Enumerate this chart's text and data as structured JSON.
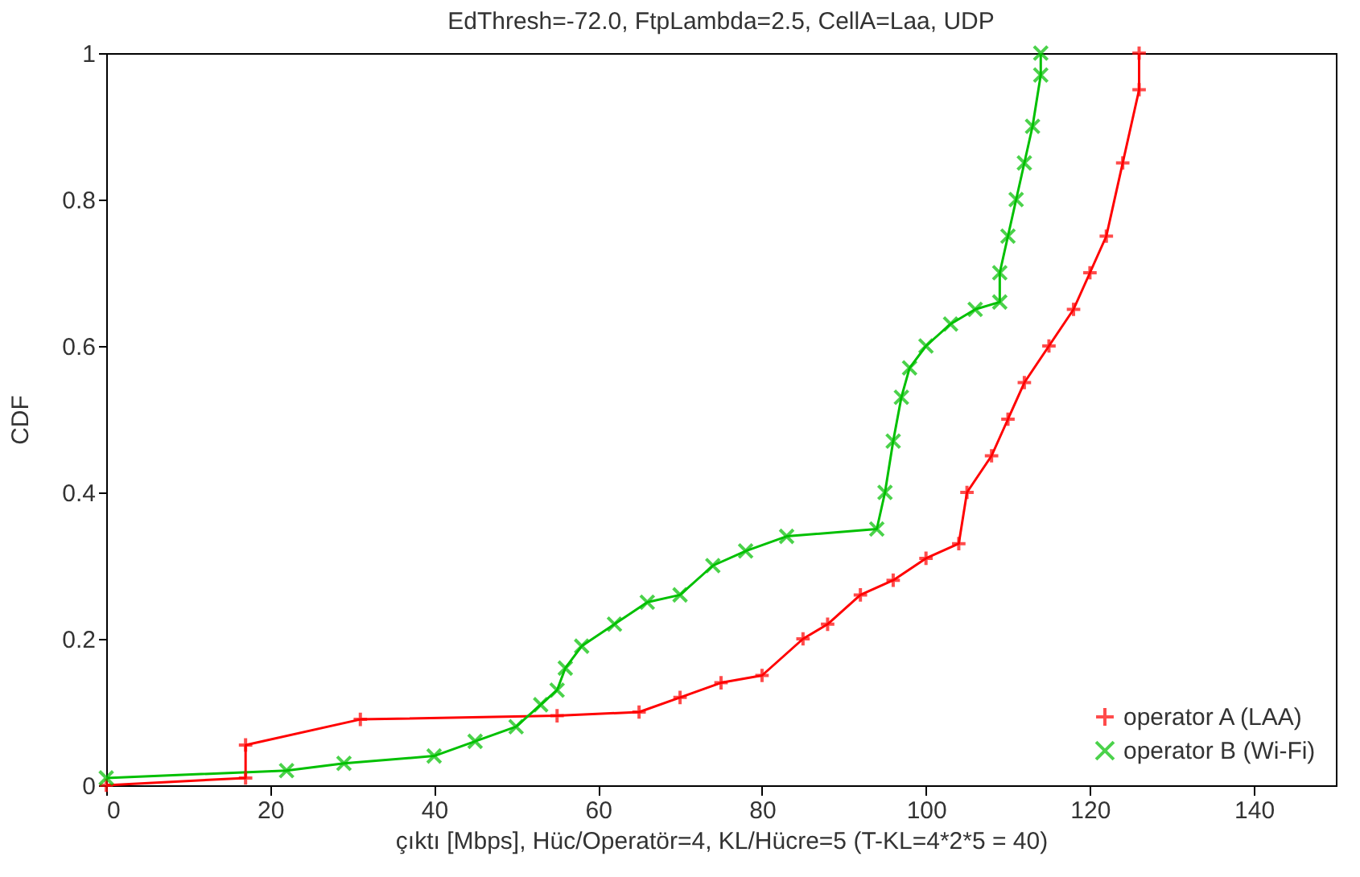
{
  "chart_data": {
    "type": "line",
    "title": "EdThresh=-72.0, FtpLambda=2.5, CellA=Laa, UDP",
    "xlabel": "çıktı [Mbps], Hüc/Operatör=4, KL/Hücre=5 (T-KL=4*2*5 = 40)",
    "ylabel": "CDF",
    "xlim": [
      0,
      150
    ],
    "xticks": [
      0,
      20,
      40,
      60,
      80,
      100,
      120,
      140
    ],
    "ylim": [
      0,
      1
    ],
    "yticks": [
      0,
      0.2,
      0.4,
      0.6,
      0.8,
      1
    ],
    "grid": false,
    "legend": "bottom right",
    "series": [
      {
        "name": "operator A (LAA)",
        "color": "#ff0000",
        "marker": "cross",
        "x": [
          0,
          17,
          17,
          31,
          55,
          65,
          70,
          75,
          80,
          85,
          88,
          92,
          96,
          100,
          104,
          105,
          108,
          110,
          112,
          115,
          118,
          120,
          122,
          124,
          126,
          126
        ],
        "values": [
          0,
          0.01,
          0.055,
          0.09,
          0.095,
          0.1,
          0.12,
          0.14,
          0.15,
          0.2,
          0.22,
          0.26,
          0.28,
          0.31,
          0.33,
          0.4,
          0.45,
          0.5,
          0.55,
          0.6,
          0.65,
          0.7,
          0.75,
          0.85,
          0.95,
          1.0
        ]
      },
      {
        "name": "operator B (Wi-Fi)",
        "color": "#00c000",
        "marker": "x",
        "x": [
          0,
          22,
          29,
          40,
          45,
          50,
          53,
          55,
          56,
          58,
          62,
          66,
          70,
          74,
          78,
          83,
          94,
          95,
          96,
          97,
          98,
          100,
          103,
          106,
          109,
          109,
          110,
          111,
          112,
          113,
          114,
          114
        ],
        "values": [
          0.01,
          0.02,
          0.03,
          0.04,
          0.06,
          0.08,
          0.11,
          0.13,
          0.16,
          0.19,
          0.22,
          0.25,
          0.26,
          0.3,
          0.32,
          0.34,
          0.35,
          0.4,
          0.47,
          0.53,
          0.57,
          0.6,
          0.63,
          0.65,
          0.66,
          0.7,
          0.75,
          0.8,
          0.85,
          0.9,
          0.97,
          1.0
        ]
      }
    ]
  }
}
